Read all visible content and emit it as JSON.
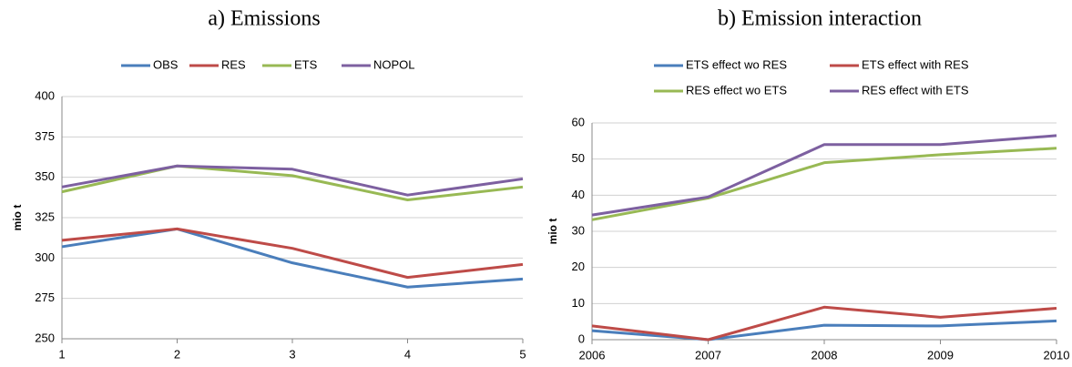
{
  "chart_data": [
    {
      "type": "line",
      "title": "a) Emissions",
      "y_label": "mio t",
      "x": [
        1,
        2,
        3,
        4,
        5
      ],
      "xlim": [
        1,
        5
      ],
      "xticks": [
        1,
        2,
        3,
        4,
        5
      ],
      "ylim": [
        250,
        400
      ],
      "yticks": [
        250,
        275,
        300,
        325,
        350,
        375,
        400
      ],
      "grid": true,
      "series": [
        {
          "name": "OBS",
          "color": "#4a7ebb",
          "values": [
            307,
            318,
            297,
            282,
            287
          ]
        },
        {
          "name": "RES",
          "color": "#be4b48",
          "values": [
            311,
            318,
            306,
            288,
            296
          ]
        },
        {
          "name": "ETS",
          "color": "#98b954",
          "values": [
            341,
            357,
            351,
            336,
            344
          ]
        },
        {
          "name": "NOPOL",
          "color": "#7d60a0",
          "values": [
            344,
            357,
            355,
            339,
            349
          ]
        }
      ]
    },
    {
      "type": "line",
      "title": "b) Emission  interaction",
      "y_label": "mio t",
      "x": [
        2006,
        2007,
        2008,
        2009,
        2010
      ],
      "xlim": [
        2006,
        2010
      ],
      "xticks": [
        2006,
        2007,
        2008,
        2009,
        2010
      ],
      "ylim": [
        0,
        60
      ],
      "yticks": [
        0,
        10,
        20,
        30,
        40,
        50,
        60
      ],
      "grid": true,
      "series": [
        {
          "name": "ETS effect wo RES",
          "color": "#4a7ebb",
          "values": [
            2.5,
            0,
            4,
            3.8,
            5.2
          ]
        },
        {
          "name": "ETS effect with RES",
          "color": "#be4b48",
          "values": [
            3.8,
            0,
            9,
            6.2,
            8.7
          ]
        },
        {
          "name": "RES effect wo ETS",
          "color": "#98b954",
          "values": [
            33.2,
            39.2,
            49,
            51.2,
            53
          ]
        },
        {
          "name": "RES effect with ETS",
          "color": "#7d60a0",
          "values": [
            34.5,
            39.5,
            54,
            54,
            56.5
          ]
        }
      ]
    }
  ]
}
